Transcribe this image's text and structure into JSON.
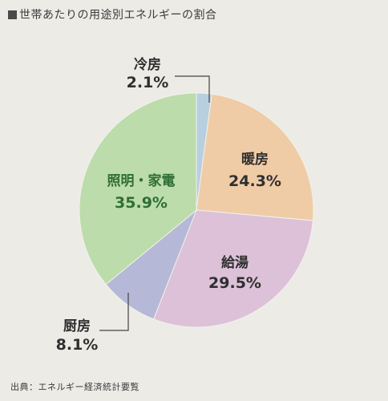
{
  "title": "世帯あたりの用途別エネルギーの割合",
  "source": "出典：エネルギー経済統計要覧",
  "chart_data": {
    "type": "pie",
    "title": "世帯あたりの用途別エネルギーの割合",
    "slices": [
      {
        "label": "冷房",
        "value": 2.1,
        "display": "2.1%",
        "color": "#b8cfe0"
      },
      {
        "label": "暖房",
        "value": 24.3,
        "display": "24.3%",
        "color": "#efcca6"
      },
      {
        "label": "給湯",
        "value": 29.5,
        "display": "29.5%",
        "color": "#dcc1d8"
      },
      {
        "label": "厨房",
        "value": 8.1,
        "display": "8.1%",
        "color": "#b5b8d6"
      },
      {
        "label": "照明・家電",
        "value": 35.9,
        "display": "35.9%",
        "color": "#bcdcab"
      }
    ],
    "legend": "none"
  }
}
